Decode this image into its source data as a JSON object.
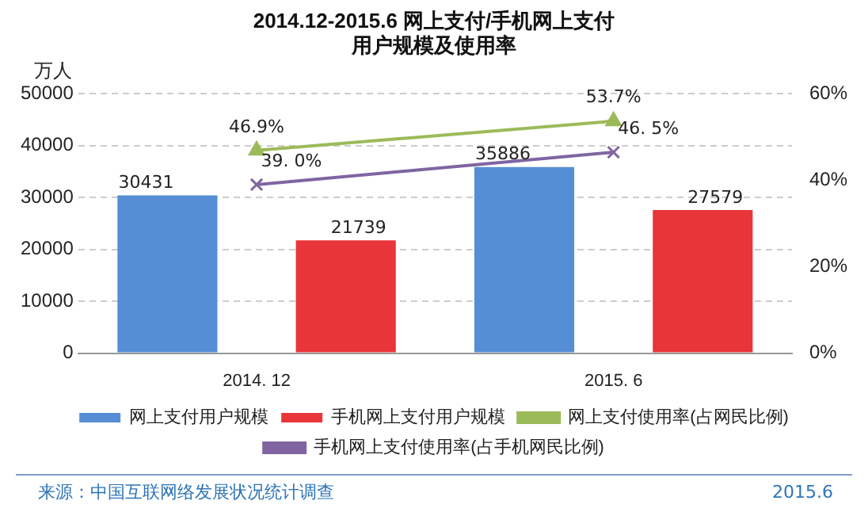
{
  "chart_data": {
    "type": "bar",
    "title": [
      "2014.12-2015.6 网上支付/手机网上支付",
      "用户规模及使用率"
    ],
    "ylabel": "万人",
    "categories": [
      "2014. 12",
      "2015. 6"
    ],
    "series": [
      {
        "name": "网上支付用户规模",
        "color": "#558ed5",
        "values": [
          30431,
          35886
        ],
        "value_labels": [
          "30431",
          "35886"
        ]
      },
      {
        "name": "手机网上支付用户规模",
        "color": "#e8353a",
        "values": [
          21739,
          27579
        ],
        "value_labels": [
          "21739",
          "27579"
        ]
      },
      {
        "name": "网上支付使用率(占网民比例)",
        "type": "line",
        "axis": "y2",
        "marker": "triangle",
        "color": "#9bbb59",
        "values": [
          46.9,
          53.7
        ],
        "value_labels": [
          "46.9%",
          "53.7%"
        ]
      },
      {
        "name": "手机网上支付使用率(占手机网民比例)",
        "type": "line",
        "axis": "y2",
        "marker": "cross",
        "color": "#8064a2",
        "values": [
          39.0,
          46.5
        ],
        "value_labels": [
          "39. 0%",
          "46. 5%"
        ]
      }
    ],
    "ylim": [
      0,
      50000
    ],
    "yticks": [
      0,
      10000,
      20000,
      30000,
      40000,
      50000
    ],
    "y2lim": [
      0,
      60
    ],
    "y2ticks": [
      {
        "value": 0,
        "label": "0%"
      },
      {
        "value": 20,
        "label": "20%"
      },
      {
        "value": 40,
        "label": "40%"
      },
      {
        "value": 60,
        "label": "60%"
      }
    ],
    "grid": "y",
    "legend": "bottom",
    "annotations": [
      "来源：中国互联网络发展状况统计调查",
      "2015.6"
    ]
  }
}
